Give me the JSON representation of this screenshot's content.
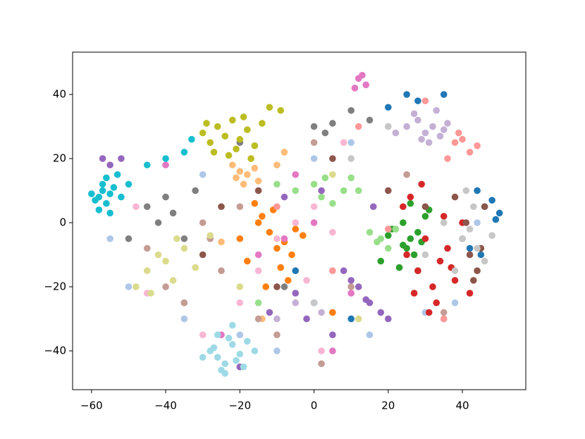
{
  "chart_data": {
    "type": "scatter",
    "xlim": [
      -65.1,
      57.1
    ],
    "ylim": [
      -52.1,
      53.2
    ],
    "xticks": [
      {
        "value": -60,
        "label": "−60"
      },
      {
        "value": -40,
        "label": "−40"
      },
      {
        "value": -20,
        "label": "−20"
      },
      0,
      20,
      40
    ],
    "yticks": [
      {
        "value": -40,
        "label": "−40"
      },
      {
        "value": -20,
        "label": "−20"
      },
      0,
      20,
      40
    ],
    "grid": false,
    "series": [
      {
        "color": "#1f77b4",
        "x": [
          46,
          48,
          50,
          44,
          49,
          25,
          28,
          35,
          20,
          0,
          10,
          45,
          42,
          -5
        ],
        "values": [
          5,
          7,
          3,
          10,
          1,
          40,
          38,
          40,
          36,
          -25,
          -30,
          -10,
          -8,
          -15
        ]
      },
      {
        "color": "#aec7e8",
        "x": [
          -55,
          -50,
          -35,
          -20,
          -10,
          0,
          10,
          20,
          30,
          35,
          44,
          38,
          -30,
          15
        ],
        "values": [
          -5,
          -20,
          -30,
          -35,
          -40,
          20,
          25,
          30,
          -28,
          -30,
          0,
          -25,
          15,
          -35
        ]
      },
      {
        "color": "#ff7f0e",
        "x": [
          -20,
          -15,
          -12,
          -10,
          -8,
          -6,
          -5,
          -14,
          -11,
          -3,
          -18,
          -9,
          -7,
          -16,
          5,
          -13
        ],
        "values": [
          -5,
          0,
          -3,
          -8,
          -6,
          -10,
          -2,
          2,
          4,
          -4,
          -12,
          -14,
          -18,
          6,
          -28,
          -20
        ]
      },
      {
        "color": "#ffbb78",
        "x": [
          -22,
          -20,
          -18,
          -16,
          -19,
          -17,
          -21,
          -15,
          -10,
          -25,
          -14,
          -8
        ],
        "values": [
          18,
          16,
          15,
          17,
          12,
          20,
          14,
          13,
          18,
          -6,
          -30,
          22
        ]
      },
      {
        "color": "#2ca02c",
        "x": [
          22,
          24,
          26,
          28,
          30,
          25,
          27,
          29,
          20,
          18,
          23,
          31,
          26,
          21,
          24,
          28
        ],
        "values": [
          -2,
          0,
          -5,
          -3,
          2,
          -8,
          -10,
          -6,
          -4,
          -12,
          -14,
          4,
          6,
          -2,
          -7,
          -15
        ]
      },
      {
        "color": "#98df8a",
        "x": [
          -5,
          0,
          2,
          5,
          8,
          10,
          15,
          18,
          20,
          22,
          -10,
          3,
          -15,
          12,
          17
        ],
        "values": [
          10,
          12,
          8,
          6,
          10,
          14,
          -3,
          -5,
          -8,
          -2,
          12,
          14,
          -25,
          10,
          -6
        ]
      },
      {
        "color": "#d62728",
        "x": [
          25,
          28,
          30,
          32,
          34,
          36,
          38,
          27,
          31,
          35,
          40,
          26,
          29,
          33,
          37,
          42,
          24
        ],
        "values": [
          -10,
          -15,
          -5,
          -20,
          -12,
          -8,
          -18,
          -22,
          -28,
          2,
          0,
          8,
          12,
          -25,
          -14,
          -22,
          5
        ]
      },
      {
        "color": "#ff9896",
        "x": [
          38,
          40,
          42,
          36,
          44,
          39,
          12,
          20,
          35,
          -10,
          5,
          30
        ],
        "values": [
          25,
          26,
          22,
          20,
          24,
          28,
          30,
          -2,
          -30,
          5,
          -15,
          38
        ]
      },
      {
        "color": "#9467bd",
        "x": [
          -57,
          -55,
          -52,
          10,
          12,
          15,
          18,
          20,
          8,
          -5,
          -2,
          5,
          -12,
          -8,
          2,
          14,
          16,
          -20,
          -35
        ],
        "values": [
          20,
          18,
          20,
          -18,
          -20,
          -25,
          -28,
          -30,
          -15,
          -22,
          -30,
          -35,
          -28,
          8,
          10,
          -24,
          5,
          -45,
          -25
        ]
      },
      {
        "color": "#c5b0d5",
        "x": [
          25,
          28,
          30,
          32,
          34,
          36,
          29,
          33,
          27,
          35,
          31,
          22,
          -10,
          -5,
          2
        ],
        "values": [
          30,
          32,
          28,
          30,
          27,
          31,
          26,
          35,
          34,
          29,
          25,
          28,
          -30,
          -25,
          -28
        ]
      },
      {
        "color": "#8c564b",
        "x": [
          40,
          42,
          44,
          45,
          43,
          46,
          41,
          38,
          -15,
          -10,
          5,
          -30,
          -25,
          20,
          30
        ],
        "values": [
          -5,
          -10,
          -15,
          -8,
          -18,
          5,
          0,
          8,
          10,
          -20,
          20,
          -10,
          5,
          10,
          5
        ]
      },
      {
        "color": "#c49c94",
        "x": [
          -40,
          -35,
          -30,
          -25,
          -20,
          -15,
          -10,
          0,
          10,
          25,
          35,
          -45,
          -28,
          2
        ],
        "values": [
          -20,
          -25,
          0,
          -15,
          5,
          -30,
          -35,
          25,
          -20,
          15,
          -28,
          -8,
          -5,
          -44
        ]
      },
      {
        "color": "#e377c2",
        "x": [
          12,
          13,
          11,
          14,
          -15,
          -5,
          0,
          5,
          -25,
          -40,
          10,
          -8
        ],
        "values": [
          45,
          46,
          42,
          43,
          -10,
          15,
          0,
          -40,
          -35,
          18,
          -22,
          -5
        ]
      },
      {
        "color": "#f7b6d2",
        "x": [
          -10,
          -5,
          0,
          5,
          8,
          -15,
          -20,
          -45,
          -48,
          -30,
          2,
          -2
        ],
        "values": [
          -5,
          0,
          5,
          -3,
          25,
          -15,
          -25,
          -22,
          5,
          -35,
          -40,
          -18
        ]
      },
      {
        "color": "#7f7f7f",
        "x": [
          -45,
          -42,
          -40,
          -38,
          -35,
          -32,
          0,
          5,
          10,
          15,
          -20,
          -8,
          -50,
          3
        ],
        "values": [
          5,
          0,
          8,
          3,
          -5,
          10,
          30,
          31,
          35,
          32,
          25,
          -20,
          -5,
          28
        ]
      },
      {
        "color": "#c7c7c7",
        "x": [
          40,
          42,
          44,
          46,
          38,
          35,
          48,
          41,
          43,
          30,
          0,
          20,
          10
        ],
        "values": [
          -5,
          -2,
          -8,
          -12,
          -15,
          0,
          -4,
          10,
          5,
          -10,
          -25,
          30,
          20
        ]
      },
      {
        "color": "#bcbd22",
        "x": [
          -30,
          -28,
          -26,
          -24,
          -22,
          -20,
          -18,
          -16,
          -27,
          -23,
          -19,
          -14,
          -12,
          -9,
          -29,
          -17,
          -21
        ],
        "values": [
          28,
          25,
          30,
          27,
          32,
          26,
          29,
          24,
          22,
          21,
          33,
          31,
          36,
          35,
          31,
          20,
          23
        ]
      },
      {
        "color": "#dbdb8d",
        "x": [
          -45,
          -42,
          -40,
          -38,
          -35,
          -32,
          -44,
          -48,
          -37,
          -28,
          -20,
          5,
          12
        ],
        "values": [
          -15,
          -10,
          -12,
          -18,
          -8,
          -14,
          -22,
          -20,
          -5,
          -4,
          -20,
          15,
          -30
        ]
      },
      {
        "color": "#17becf",
        "x": [
          -58,
          -57,
          -56,
          -55,
          -57,
          -59,
          -54,
          -56,
          -52,
          -50,
          -45,
          -40,
          -35,
          -33,
          -58,
          -55,
          -53,
          -60
        ],
        "values": [
          8,
          10,
          6,
          9,
          12,
          7,
          11,
          14,
          8,
          12,
          18,
          20,
          22,
          26,
          4,
          3,
          15,
          9
        ]
      },
      {
        "color": "#9edae5",
        "x": [
          -28,
          -26,
          -24,
          -22,
          -20,
          -25,
          -23,
          -27,
          -21,
          -18,
          -16,
          -24,
          -26,
          -30,
          -19,
          -22
        ],
        "values": [
          -40,
          -42,
          -44,
          -38,
          -41,
          -46,
          -36,
          -39,
          -43,
          -37,
          -40,
          -47,
          -35,
          -42,
          -45,
          -32
        ]
      }
    ]
  }
}
